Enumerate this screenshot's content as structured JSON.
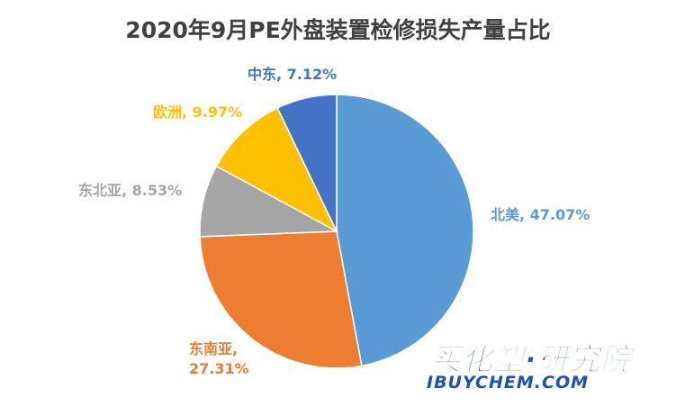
{
  "chart_data": {
    "type": "pie",
    "title": "2020年9月PE外盘装置检修损失产量占比",
    "slices": [
      {
        "label": "北美",
        "value": 47.07,
        "display": "北美, 47.07%",
        "color": "#5b9bd5"
      },
      {
        "label": "东南亚",
        "value": 27.31,
        "display": "东南亚,",
        "display2": "27.31%",
        "color": "#ed7d31"
      },
      {
        "label": "东北亚",
        "value": 8.53,
        "display": "东北亚, 8.53%",
        "color": "#a5a5a5"
      },
      {
        "label": "欧洲",
        "value": 9.97,
        "display": "欧洲, 9.97%",
        "color": "#ffc000"
      },
      {
        "label": "中东",
        "value": 7.12,
        "display": "中东, 7.12%",
        "color": "#4472c4"
      }
    ],
    "start_angle": "top",
    "direction": "clockwise"
  },
  "watermark": {
    "cn": "买化塑·研究院",
    "en": "IBUYCHEM.COM"
  }
}
